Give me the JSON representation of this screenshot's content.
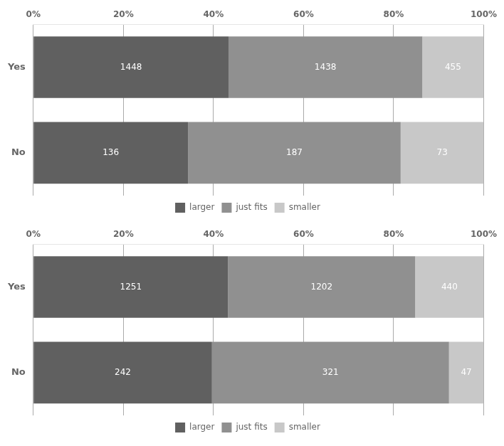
{
  "chart_data": [
    {
      "type": "bar",
      "orientation": "horizontal",
      "stacked": true,
      "categories": [
        "Yes",
        "No"
      ],
      "series": [
        {
          "name": "larger",
          "color": "#606060",
          "values": [
            43.3403,
            34.3434
          ],
          "counts": [
            1448,
            136
          ]
        },
        {
          "name": "just fits",
          "color": "#909090",
          "values": [
            43.041,
            47.2222
          ],
          "counts": [
            1438,
            187
          ]
        },
        {
          "name": "smaller",
          "color": "#c8c8c8",
          "values": [
            13.6187,
            18.4343
          ],
          "counts": [
            455,
            73
          ]
        }
      ],
      "xlim": [
        0,
        100
      ],
      "xticks": [
        {
          "value": 0,
          "label": "0%"
        },
        {
          "value": 20,
          "label": "20%"
        },
        {
          "value": 40,
          "label": "40%"
        },
        {
          "value": 60,
          "label": "60%"
        },
        {
          "value": 80,
          "label": "80%"
        },
        {
          "value": 100,
          "label": "100%"
        }
      ],
      "grid": true,
      "legend": "bottom"
    },
    {
      "type": "bar",
      "orientation": "horizontal",
      "stacked": true,
      "categories": [
        "Yes",
        "No"
      ],
      "series": [
        {
          "name": "larger",
          "color": "#606060",
          "values": [
            43.2423,
            39.6721
          ],
          "counts": [
            1251,
            242
          ]
        },
        {
          "name": "just fits",
          "color": "#909090",
          "values": [
            41.5486,
            52.623
          ],
          "counts": [
            1202,
            321
          ]
        },
        {
          "name": "smaller",
          "color": "#c8c8c8",
          "values": [
            15.2091,
            7.7049
          ],
          "counts": [
            440,
            47
          ]
        }
      ],
      "xlim": [
        0,
        100
      ],
      "xticks": [
        {
          "value": 0,
          "label": "0%"
        },
        {
          "value": 20,
          "label": "20%"
        },
        {
          "value": 40,
          "label": "40%"
        },
        {
          "value": 60,
          "label": "60%"
        },
        {
          "value": 80,
          "label": "80%"
        },
        {
          "value": 100,
          "label": "100%"
        }
      ],
      "grid": true,
      "legend": "bottom"
    }
  ]
}
